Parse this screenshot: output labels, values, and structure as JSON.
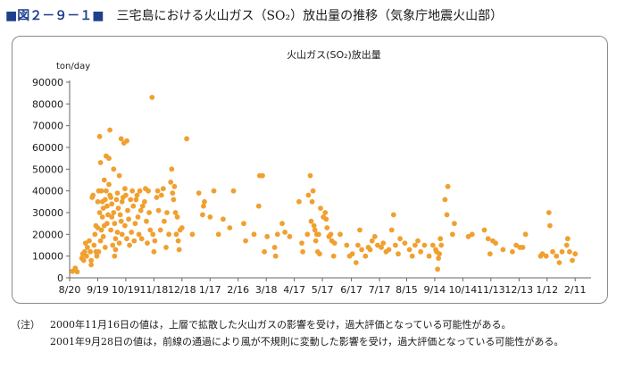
{
  "figure": {
    "label": "■図２－９－１■",
    "title": "三宅島における火山ガス（SO₂）放出量の推移（気象庁地震火山部）"
  },
  "notes": {
    "prefix": "（注）",
    "lines": [
      "2000年11月16日の値は，上層で拡散した火山ガスの影響を受け，過大評価となっている可能性がある。",
      "2001年9月28日の値は，前線の通過により風が不規則に変動した影響を受け，過大評価となっている可能性がある。"
    ]
  },
  "chart_data": {
    "type": "scatter",
    "title": "火山ガス(SO₂)放出量",
    "ylabel": "ton/day",
    "xlabel": "",
    "ylim": [
      0,
      90000
    ],
    "xlim": [
      "2000-08-20",
      "2002-02-28"
    ],
    "x_tick_labels": [
      "8/20",
      "9/19",
      "10/19",
      "11/18",
      "12/18",
      "1/17",
      "2/16",
      "3/18",
      "4/17",
      "5/17",
      "6/17",
      "7/17",
      "8/15",
      "9/14",
      "10/14",
      "11/13",
      "12/13",
      "1/12",
      "2/11"
    ],
    "x_tick_dates": [
      "2000-08-20",
      "2000-09-19",
      "2000-10-19",
      "2000-11-18",
      "2000-12-18",
      "2001-01-17",
      "2001-02-16",
      "2001-03-18",
      "2001-04-17",
      "2001-05-17",
      "2001-06-17",
      "2001-07-17",
      "2001-08-15",
      "2001-09-14",
      "2001-10-14",
      "2001-11-13",
      "2001-12-13",
      "2002-01-12",
      "2002-02-11"
    ],
    "y_ticks": [
      0,
      10000,
      20000,
      30000,
      40000,
      50000,
      60000,
      70000,
      80000,
      90000
    ],
    "grid": false,
    "legend": "none",
    "marker_color": "#f0a030",
    "series": [
      {
        "points": [
          [
            "2000-08-23",
            3000
          ],
          [
            "2000-08-26",
            4500
          ],
          [
            "2000-08-28",
            2800
          ],
          [
            "2000-09-02",
            9000
          ],
          [
            "2000-09-03",
            11000
          ],
          [
            "2000-09-04",
            8000
          ],
          [
            "2000-09-05",
            12000
          ],
          [
            "2000-09-06",
            16000
          ],
          [
            "2000-09-07",
            10000
          ],
          [
            "2000-09-08",
            14000
          ],
          [
            "2000-09-10",
            17000
          ],
          [
            "2000-09-11",
            12000
          ],
          [
            "2000-09-12",
            8000
          ],
          [
            "2000-09-12",
            6000
          ],
          [
            "2000-09-13",
            37000
          ],
          [
            "2000-09-14",
            38000
          ],
          [
            "2000-09-15",
            15000
          ],
          [
            "2000-09-16",
            20000
          ],
          [
            "2000-09-17",
            12000
          ],
          [
            "2000-09-17",
            24000
          ],
          [
            "2000-09-18",
            10000
          ],
          [
            "2000-09-19",
            23000
          ],
          [
            "2000-09-19",
            35000
          ],
          [
            "2000-09-20",
            40000
          ],
          [
            "2000-09-20",
            12000
          ],
          [
            "2000-09-21",
            65000
          ],
          [
            "2000-09-21",
            30000
          ],
          [
            "2000-09-22",
            53000
          ],
          [
            "2000-09-22",
            17000
          ],
          [
            "2000-09-23",
            40000
          ],
          [
            "2000-09-23",
            22000
          ],
          [
            "2000-09-24",
            35000
          ],
          [
            "2000-09-24",
            28000
          ],
          [
            "2000-09-25",
            19000
          ],
          [
            "2000-09-25",
            32000
          ],
          [
            "2000-09-26",
            24000
          ],
          [
            "2000-09-26",
            45000
          ],
          [
            "2000-09-27",
            36000
          ],
          [
            "2000-09-27",
            14000
          ],
          [
            "2000-09-28",
            56000
          ],
          [
            "2000-09-28",
            40000
          ],
          [
            "2000-09-29",
            25000
          ],
          [
            "2000-09-29",
            33000
          ],
          [
            "2000-09-30",
            29000
          ],
          [
            "2000-10-01",
            43000
          ],
          [
            "2000-10-01",
            55000
          ],
          [
            "2000-10-02",
            68000
          ],
          [
            "2000-10-02",
            38000
          ],
          [
            "2000-10-03",
            37000
          ],
          [
            "2000-10-03",
            22000
          ],
          [
            "2000-10-04",
            34000
          ],
          [
            "2000-10-04",
            28000
          ],
          [
            "2000-10-05",
            15000
          ],
          [
            "2000-10-06",
            50000
          ],
          [
            "2000-10-06",
            30000
          ],
          [
            "2000-10-07",
            25000
          ],
          [
            "2000-10-07",
            10000
          ],
          [
            "2000-10-08",
            18000
          ],
          [
            "2000-10-08",
            13000
          ],
          [
            "2000-10-09",
            36000
          ],
          [
            "2000-10-10",
            39000
          ],
          [
            "2000-10-10",
            21000
          ],
          [
            "2000-10-11",
            32000
          ],
          [
            "2000-10-12",
            47000
          ],
          [
            "2000-10-12",
            16000
          ],
          [
            "2000-10-13",
            29000
          ],
          [
            "2000-10-14",
            64000
          ],
          [
            "2000-10-14",
            26000
          ],
          [
            "2000-10-15",
            35000
          ],
          [
            "2000-10-15",
            20000
          ],
          [
            "2000-10-16",
            37000
          ],
          [
            "2000-10-17",
            62000
          ],
          [
            "2000-10-18",
            24000
          ],
          [
            "2000-10-18",
            41000
          ],
          [
            "2000-10-19",
            38000
          ],
          [
            "2000-10-20",
            63000
          ],
          [
            "2000-10-20",
            18000
          ],
          [
            "2000-10-21",
            31000
          ],
          [
            "2000-10-22",
            27000
          ],
          [
            "2000-10-23",
            15000
          ],
          [
            "2000-10-24",
            36000
          ],
          [
            "2000-10-25",
            21000
          ],
          [
            "2000-10-26",
            40000
          ],
          [
            "2000-10-27",
            33000
          ],
          [
            "2000-10-28",
            17000
          ],
          [
            "2000-10-29",
            25000
          ],
          [
            "2000-10-30",
            36000
          ],
          [
            "2000-10-31",
            38000
          ],
          [
            "2000-11-01",
            28000
          ],
          [
            "2000-11-02",
            20000
          ],
          [
            "2000-11-03",
            40000
          ],
          [
            "2000-11-04",
            31000
          ],
          [
            "2000-11-05",
            18000
          ],
          [
            "2000-11-06",
            33000
          ],
          [
            "2000-11-08",
            35000
          ],
          [
            "2000-11-09",
            41000
          ],
          [
            "2000-11-10",
            26000
          ],
          [
            "2000-11-11",
            16000
          ],
          [
            "2000-11-12",
            40000
          ],
          [
            "2000-11-13",
            30000
          ],
          [
            "2000-11-14",
            22000
          ],
          [
            "2000-11-16",
            83000
          ],
          [
            "2000-11-17",
            20000
          ],
          [
            "2000-11-18",
            12000
          ],
          [
            "2000-11-19",
            17000
          ],
          [
            "2000-11-21",
            37000
          ],
          [
            "2000-11-22",
            40000
          ],
          [
            "2000-11-23",
            31000
          ],
          [
            "2000-11-25",
            22000
          ],
          [
            "2000-11-26",
            38000
          ],
          [
            "2000-11-28",
            41000
          ],
          [
            "2000-11-29",
            26000
          ],
          [
            "2000-12-01",
            14000
          ],
          [
            "2000-12-02",
            30000
          ],
          [
            "2000-12-04",
            20000
          ],
          [
            "2000-12-06",
            44000
          ],
          [
            "2000-12-07",
            50000
          ],
          [
            "2000-12-08",
            39000
          ],
          [
            "2000-12-09",
            36000
          ],
          [
            "2000-12-10",
            42000
          ],
          [
            "2000-12-11",
            30000
          ],
          [
            "2000-12-12",
            20000
          ],
          [
            "2000-12-13",
            28000
          ],
          [
            "2000-12-14",
            17000
          ],
          [
            "2000-12-15",
            13000
          ],
          [
            "2000-12-16",
            22000
          ],
          [
            "2000-12-18",
            23000
          ],
          [
            "2000-12-23",
            64000
          ],
          [
            "2000-12-29",
            20000
          ],
          [
            "2001-01-05",
            39000
          ],
          [
            "2001-01-09",
            29000
          ],
          [
            "2001-01-10",
            33000
          ],
          [
            "2001-01-11",
            35000
          ],
          [
            "2001-01-17",
            28000
          ],
          [
            "2001-01-21",
            40000
          ],
          [
            "2001-01-26",
            20000
          ],
          [
            "2001-01-31",
            27000
          ],
          [
            "2001-02-07",
            23000
          ],
          [
            "2001-02-11",
            40000
          ],
          [
            "2001-02-22",
            25000
          ],
          [
            "2001-02-24",
            17000
          ],
          [
            "2001-03-05",
            20000
          ],
          [
            "2001-03-10",
            33000
          ],
          [
            "2001-03-11",
            47000
          ],
          [
            "2001-03-14",
            47000
          ],
          [
            "2001-03-16",
            12000
          ],
          [
            "2001-03-19",
            19000
          ],
          [
            "2001-03-27",
            14000
          ],
          [
            "2001-03-28",
            10000
          ],
          [
            "2001-03-30",
            20000
          ],
          [
            "2001-04-04",
            25000
          ],
          [
            "2001-04-07",
            21000
          ],
          [
            "2001-04-12",
            19000
          ],
          [
            "2001-04-22",
            35000
          ],
          [
            "2001-04-25",
            16000
          ],
          [
            "2001-04-26",
            12000
          ],
          [
            "2001-05-01",
            20000
          ],
          [
            "2001-05-02",
            38000
          ],
          [
            "2001-05-04",
            47000
          ],
          [
            "2001-05-05",
            26000
          ],
          [
            "2001-05-06",
            35000
          ],
          [
            "2001-05-07",
            40000
          ],
          [
            "2001-05-08",
            24000
          ],
          [
            "2001-05-09",
            22000
          ],
          [
            "2001-05-10",
            17000
          ],
          [
            "2001-05-11",
            20000
          ],
          [
            "2001-05-12",
            12000
          ],
          [
            "2001-05-13",
            20000
          ],
          [
            "2001-05-14",
            11000
          ],
          [
            "2001-05-15",
            32000
          ],
          [
            "2001-05-18",
            28000
          ],
          [
            "2001-05-20",
            30000
          ],
          [
            "2001-05-21",
            27000
          ],
          [
            "2001-05-22",
            23000
          ],
          [
            "2001-05-24",
            19000
          ],
          [
            "2001-05-26",
            20000
          ],
          [
            "2001-05-27",
            17000
          ],
          [
            "2001-05-29",
            10000
          ],
          [
            "2001-05-30",
            16000
          ],
          [
            "2001-06-05",
            20000
          ],
          [
            "2001-06-12",
            15000
          ],
          [
            "2001-06-15",
            10000
          ],
          [
            "2001-06-18",
            11000
          ],
          [
            "2001-06-22",
            7000
          ],
          [
            "2001-06-24",
            15000
          ],
          [
            "2001-06-26",
            22000
          ],
          [
            "2001-06-28",
            13000
          ],
          [
            "2001-07-02",
            10000
          ],
          [
            "2001-07-05",
            14000
          ],
          [
            "2001-07-07",
            13000
          ],
          [
            "2001-07-09",
            17000
          ],
          [
            "2001-07-12",
            19000
          ],
          [
            "2001-07-15",
            15000
          ],
          [
            "2001-07-19",
            14000
          ],
          [
            "2001-07-21",
            16000
          ],
          [
            "2001-07-24",
            12000
          ],
          [
            "2001-07-27",
            13000
          ],
          [
            "2001-07-30",
            22000
          ],
          [
            "2001-08-01",
            29000
          ],
          [
            "2001-08-03",
            15000
          ],
          [
            "2001-08-06",
            11000
          ],
          [
            "2001-08-08",
            18000
          ],
          [
            "2001-08-13",
            16000
          ],
          [
            "2001-08-18",
            13000
          ],
          [
            "2001-08-21",
            10000
          ],
          [
            "2001-08-24",
            15000
          ],
          [
            "2001-08-27",
            17000
          ],
          [
            "2001-08-30",
            12000
          ],
          [
            "2001-09-03",
            15000
          ],
          [
            "2001-09-08",
            10000
          ],
          [
            "2001-09-12",
            15000
          ],
          [
            "2001-09-15",
            13000
          ],
          [
            "2001-09-16",
            12000
          ],
          [
            "2001-09-17",
            4000
          ],
          [
            "2001-09-18",
            9000
          ],
          [
            "2001-09-19",
            11000
          ],
          [
            "2001-09-20",
            18000
          ],
          [
            "2001-09-21",
            15000
          ],
          [
            "2001-09-25",
            36000
          ],
          [
            "2001-09-27",
            29000
          ],
          [
            "2001-09-28",
            42000
          ],
          [
            "2001-10-03",
            20000
          ],
          [
            "2001-10-05",
            25000
          ],
          [
            "2001-10-20",
            19000
          ],
          [
            "2001-10-24",
            20000
          ],
          [
            "2001-11-06",
            22000
          ],
          [
            "2001-11-10",
            18000
          ],
          [
            "2001-11-12",
            11000
          ],
          [
            "2001-11-15",
            17000
          ],
          [
            "2001-11-18",
            16000
          ],
          [
            "2001-11-26",
            13000
          ],
          [
            "2001-12-06",
            12000
          ],
          [
            "2001-12-10",
            15000
          ],
          [
            "2001-12-14",
            14000
          ],
          [
            "2001-12-17",
            14000
          ],
          [
            "2001-12-20",
            20000
          ],
          [
            "2002-01-05",
            10000
          ],
          [
            "2002-01-07",
            11000
          ],
          [
            "2002-01-11",
            10000
          ],
          [
            "2002-01-14",
            30000
          ],
          [
            "2002-01-15",
            24000
          ],
          [
            "2002-01-18",
            12000
          ],
          [
            "2002-01-22",
            10000
          ],
          [
            "2002-01-25",
            7000
          ],
          [
            "2002-01-28",
            12000
          ],
          [
            "2002-02-02",
            15000
          ],
          [
            "2002-02-03",
            18000
          ],
          [
            "2002-02-05",
            12000
          ],
          [
            "2002-02-08",
            8000
          ],
          [
            "2002-02-11",
            11000
          ]
        ]
      }
    ]
  }
}
